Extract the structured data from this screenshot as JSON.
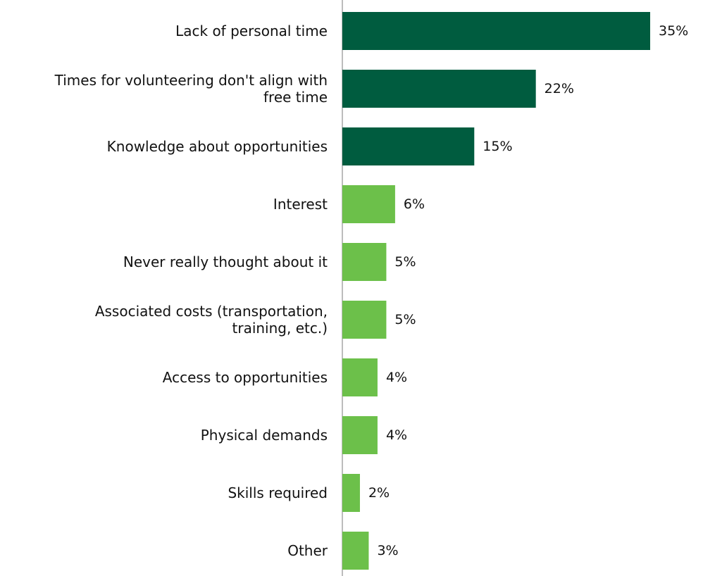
{
  "chart_data": {
    "type": "bar",
    "orientation": "horizontal",
    "categories": [
      "Lack of personal time",
      "Times for volunteering don't align with free time",
      "Knowledge about opportunities",
      "Interest",
      "Never really thought about it",
      "Associated costs (transportation, training, etc.)",
      "Access to opportunities",
      "Physical demands",
      "Skills required",
      "Other"
    ],
    "category_lines": [
      [
        "Lack of personal time"
      ],
      [
        "Times for volunteering don't align with",
        "free time"
      ],
      [
        "Knowledge about opportunities"
      ],
      [
        "Interest"
      ],
      [
        "Never really thought about it"
      ],
      [
        "Associated costs (transportation,",
        "training, etc.)"
      ],
      [
        "Access to opportunities"
      ],
      [
        "Physical demands"
      ],
      [
        "Skills required"
      ],
      [
        "Other"
      ]
    ],
    "values": [
      35,
      22,
      15,
      6,
      5,
      5,
      4,
      4,
      2,
      3
    ],
    "value_labels": [
      "35%",
      "22%",
      "15%",
      "6%",
      "5%",
      "5%",
      "4%",
      "4%",
      "2%",
      "3%"
    ],
    "bar_colors": [
      "#005c3f",
      "#005c3f",
      "#005c3f",
      "#6cc04a",
      "#6cc04a",
      "#6cc04a",
      "#6cc04a",
      "#6cc04a",
      "#6cc04a",
      "#6cc04a"
    ],
    "xlim": [
      0,
      35
    ],
    "grid": false,
    "axis_color": "#a6a6a6",
    "title": "",
    "xlabel": "",
    "ylabel": ""
  }
}
